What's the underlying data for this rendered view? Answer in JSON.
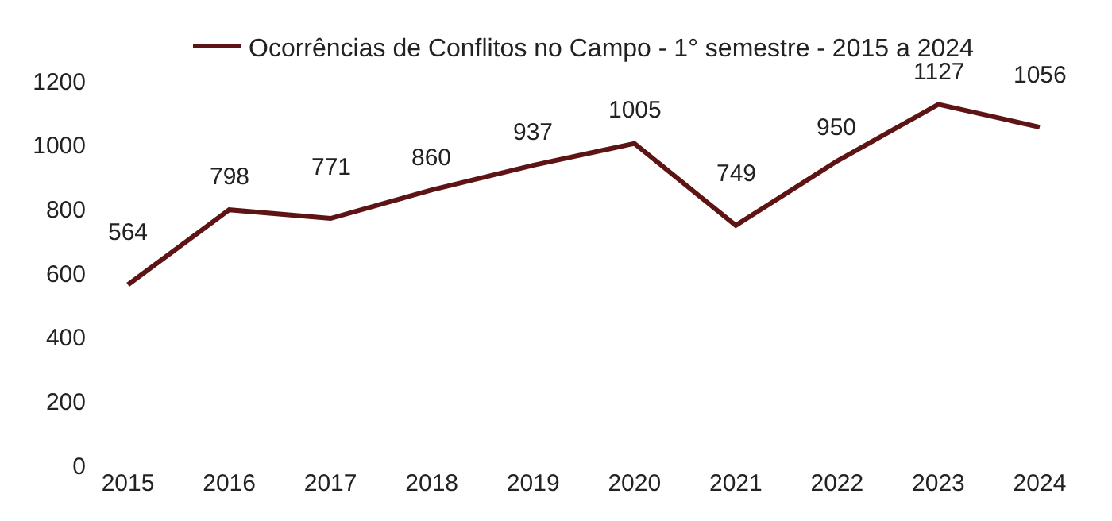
{
  "chart_data": {
    "type": "line",
    "categories": [
      "2015",
      "2016",
      "2017",
      "2018",
      "2019",
      "2020",
      "2021",
      "2022",
      "2023",
      "2024"
    ],
    "series": [
      {
        "name": "Ocorrências de Conflitos no Campo - 1° semestre - 2015 a 2024",
        "color": "#5e1414",
        "values": [
          564,
          798,
          771,
          860,
          937,
          1005,
          749,
          950,
          1127,
          1056
        ]
      }
    ],
    "ylim": [
      0,
      1200
    ],
    "yticks": [
      0,
      200,
      400,
      600,
      800,
      1000,
      1200
    ],
    "data_labels": true,
    "grid": false,
    "legend": "top",
    "marker": "none",
    "line_style": "solid"
  }
}
